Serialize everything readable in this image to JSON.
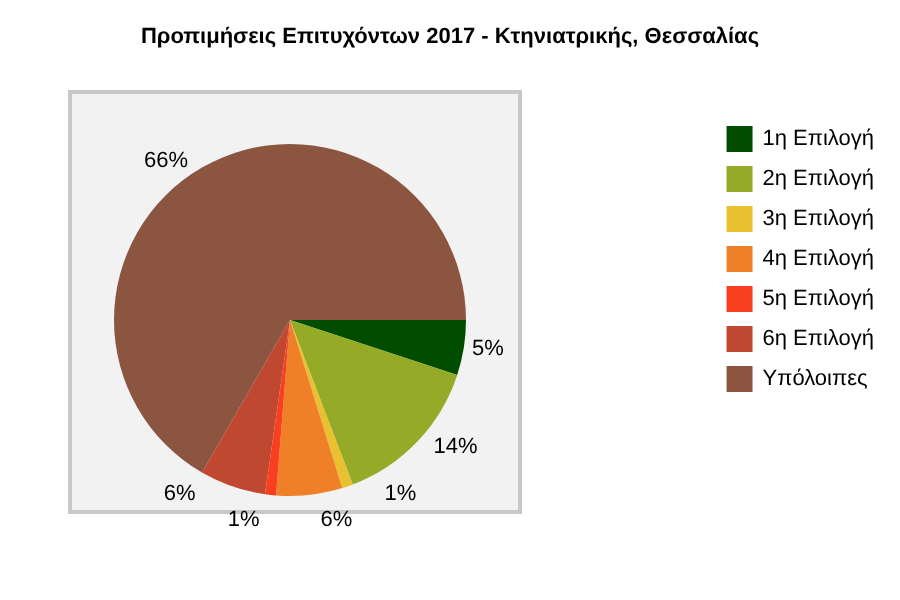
{
  "chart_data": {
    "type": "pie",
    "title": "Προπιμήσεις Επιτυχόντων 2017 - Κτηνιατρικής, Θεσσαλίας",
    "categories": [
      "1η Επιλογή",
      "2η Επιλογή",
      "3η Επιλογή",
      "4η Επιλογή",
      "5η Επιλογή",
      "6η Επιλογή",
      "Υπόλοιπες"
    ],
    "values": [
      5,
      14,
      1,
      6,
      1,
      6,
      66
    ],
    "colors": [
      "#004d00",
      "#95aa26",
      "#e8c030",
      "#f08028",
      "#f84020",
      "#c04830",
      "#8b5540"
    ],
    "value_labels": [
      "5%",
      "14%",
      "1%",
      "6%",
      "1%",
      "6%",
      "66%"
    ],
    "legend": "right"
  }
}
